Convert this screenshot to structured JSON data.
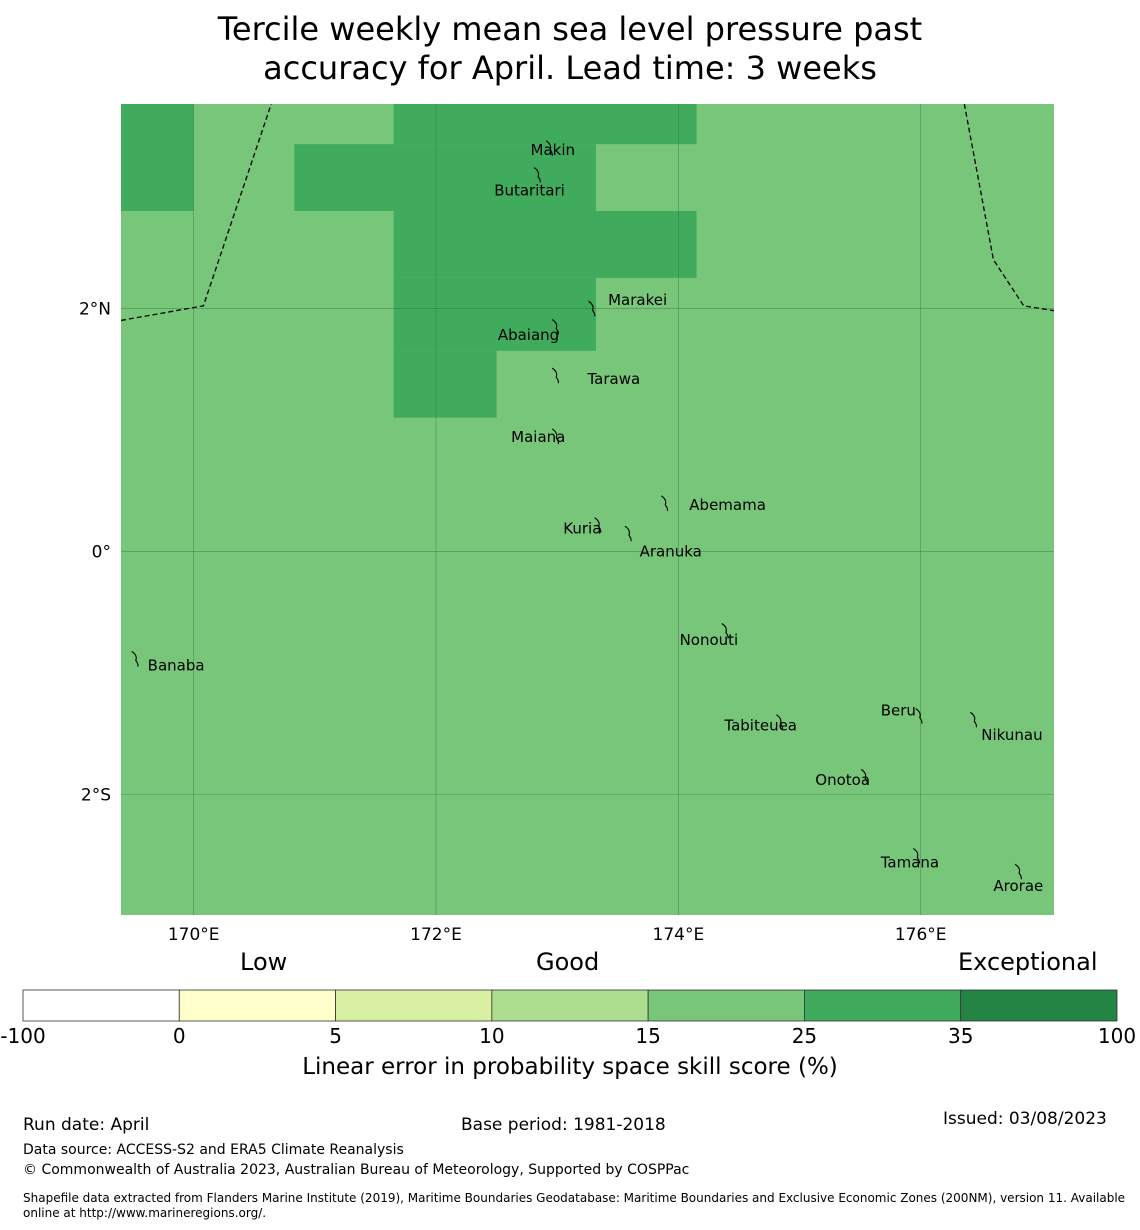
{
  "title_lines": [
    "Tercile weekly mean sea level pressure past",
    "accuracy for April. Lead time: 3 weeks"
  ],
  "map": {
    "lon_range": [
      169.4,
      177.1
    ],
    "lat_range": [
      -2.99,
      3.68
    ],
    "x_ticks": [
      {
        "value": 170,
        "label": "170°E"
      },
      {
        "value": 172,
        "label": "172°E"
      },
      {
        "value": 174,
        "label": "174°E"
      },
      {
        "value": 176,
        "label": "176°E"
      }
    ],
    "y_ticks": [
      {
        "value": 2,
        "label": "2°N"
      },
      {
        "value": 0,
        "label": "0°"
      },
      {
        "value": -2,
        "label": "2°S"
      }
    ],
    "base_color": "#78c679",
    "high_color": "#41ab5d",
    "high_cells": [
      {
        "lon": [
          169.4,
          170.0
        ],
        "lat": [
          2.8,
          3.68
        ]
      },
      {
        "lon": [
          171.65,
          174.15
        ],
        "lat": [
          3.35,
          3.68
        ]
      },
      {
        "lon": [
          170.83,
          173.32
        ],
        "lat": [
          2.8,
          3.35
        ]
      },
      {
        "lon": [
          171.65,
          174.15
        ],
        "lat": [
          2.25,
          2.8
        ]
      },
      {
        "lon": [
          171.65,
          173.32
        ],
        "lat": [
          1.65,
          2.25
        ]
      },
      {
        "lon": [
          171.65,
          172.5
        ],
        "lat": [
          1.1,
          1.65
        ]
      }
    ],
    "islands": [
      {
        "name": "Makin",
        "lon": 172.95,
        "lat": 3.32,
        "label_lon": 172.78,
        "label_lat": 3.3
      },
      {
        "name": "Butaritari",
        "lon": 172.85,
        "lat": 3.1,
        "label_lon": 172.48,
        "label_lat": 2.97
      },
      {
        "name": "Marakei",
        "lon": 173.3,
        "lat": 2.0,
        "label_lon": 173.42,
        "label_lat": 2.07
      },
      {
        "name": "Abaiang",
        "lon": 173.0,
        "lat": 1.85,
        "label_lon": 172.51,
        "label_lat": 1.78
      },
      {
        "name": "Tarawa",
        "lon": 173.0,
        "lat": 1.45,
        "label_lon": 173.25,
        "label_lat": 1.42
      },
      {
        "name": "Maiana",
        "lon": 173.0,
        "lat": 0.95,
        "label_lon": 172.62,
        "label_lat": 0.94
      },
      {
        "name": "Abemama",
        "lon": 173.9,
        "lat": 0.4,
        "label_lon": 174.09,
        "label_lat": 0.38
      },
      {
        "name": "Kuria",
        "lon": 173.35,
        "lat": 0.22,
        "label_lon": 173.05,
        "label_lat": 0.19
      },
      {
        "name": "Aranuka",
        "lon": 173.6,
        "lat": 0.15,
        "label_lon": 173.68,
        "label_lat": 0.0
      },
      {
        "name": "Nonouti",
        "lon": 174.4,
        "lat": -0.65,
        "label_lon": 174.01,
        "label_lat": -0.73
      },
      {
        "name": "Banaba",
        "lon": 169.53,
        "lat": -0.88,
        "label_lon": 169.62,
        "label_lat": -0.94
      },
      {
        "name": "Tabiteuea",
        "lon": 174.85,
        "lat": -1.4,
        "label_lon": 174.38,
        "label_lat": -1.43
      },
      {
        "name": "Beru",
        "lon": 176.0,
        "lat": -1.35,
        "label_lon": 175.67,
        "label_lat": -1.31
      },
      {
        "name": "Nikunau",
        "lon": 176.45,
        "lat": -1.38,
        "label_lon": 176.5,
        "label_lat": -1.51
      },
      {
        "name": "Onotoa",
        "lon": 175.55,
        "lat": -1.85,
        "label_lon": 175.13,
        "label_lat": -1.88
      },
      {
        "name": "Tamana",
        "lon": 175.98,
        "lat": -2.5,
        "label_lon": 175.67,
        "label_lat": -2.56
      },
      {
        "name": "Arorae",
        "lon": 176.82,
        "lat": -2.63,
        "label_lon": 176.6,
        "label_lat": -2.75
      }
    ],
    "boundaries": [
      [
        [
          169.4,
          1.9
        ],
        [
          170.08,
          2.02
        ],
        [
          170.64,
          3.68
        ]
      ],
      [
        [
          176.36,
          3.68
        ],
        [
          176.6,
          2.4
        ],
        [
          176.85,
          2.02
        ],
        [
          177.1,
          1.98
        ]
      ]
    ]
  },
  "colorbar": {
    "categories": [
      {
        "label": "Low",
        "position": "left"
      },
      {
        "label": "Good",
        "position": "center"
      },
      {
        "label": "Exceptional",
        "position": "right"
      }
    ],
    "boundaries": [
      "-100",
      "0",
      "5",
      "10",
      "15",
      "25",
      "35",
      "100"
    ],
    "colors": [
      "#ffffff",
      "#ffffcc",
      "#d9f0a3",
      "#addd8e",
      "#78c679",
      "#41ab5d",
      "#238443"
    ],
    "label": "Linear error in probability space skill score (%)"
  },
  "footer": {
    "run_date": "Run date: April",
    "base_period": "Base period: 1981-2018",
    "issued": "Issued: 03/08/2023",
    "data_source": "Data source: ACCESS-S2 and ERA5 Climate Reanalysis",
    "copyright": "© Commonwealth of Australia 2023, Australian Bureau of Meteorology, Supported by COSPPac",
    "shapefile_lines": [
      "Shapefile data extracted from Flanders Marine Institute (2019), Maritime Boundaries Geodatabase: Maritime Boundaries and Exclusive Economic Zones (200NM), version 11. Available",
      "online at http://www.marineregions.org/."
    ]
  }
}
